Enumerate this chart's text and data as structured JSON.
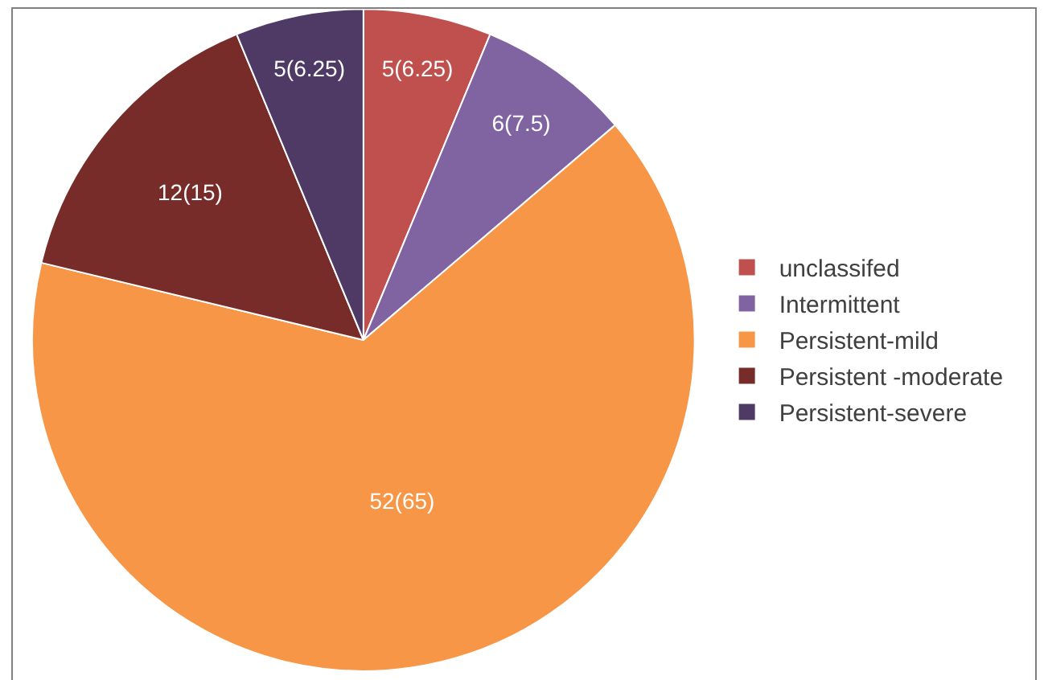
{
  "chart_data": {
    "type": "pie",
    "categories": [
      "unclassifed",
      "Intermittent",
      "Persistent-mild",
      "Persistent -moderate",
      "Persistent-severe"
    ],
    "values": [
      5,
      6,
      52,
      12,
      5
    ],
    "value_labels": [
      "5(6.25)",
      "6(7.5)",
      "52(65)",
      "12(15)",
      "5(6.25)"
    ],
    "colors": [
      "#c0504d",
      "#8064a2",
      "#f79646",
      "#772c2a",
      "#4f3a66"
    ],
    "legend": "right"
  }
}
